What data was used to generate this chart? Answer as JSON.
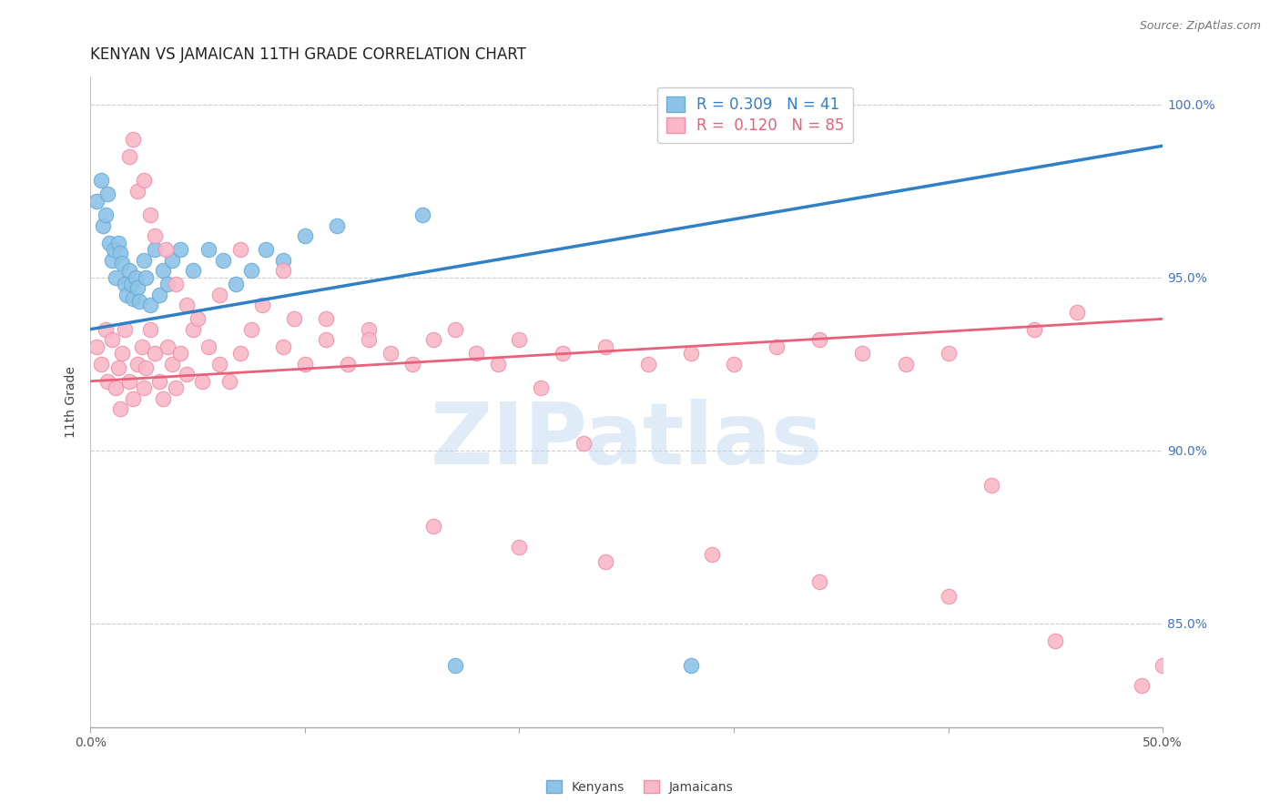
{
  "title": "KENYAN VS JAMAICAN 11TH GRADE CORRELATION CHART",
  "source": "Source: ZipAtlas.com",
  "ylabel": "11th Grade",
  "xmin": 0.0,
  "xmax": 0.5,
  "ymin": 0.82,
  "ymax": 1.008,
  "xticks": [
    0.0,
    0.1,
    0.2,
    0.3,
    0.4,
    0.5
  ],
  "xticklabels": [
    "0.0%",
    "",
    "",
    "",
    "",
    "50.0%"
  ],
  "yticks": [
    0.85,
    0.9,
    0.95,
    1.0
  ],
  "yticklabels": [
    "85.0%",
    "90.0%",
    "95.0%",
    "100.0%"
  ],
  "legend_line1": "R = 0.309   N = 41",
  "legend_line2": "R =  0.120   N = 85",
  "kenyan_color": "#8dc3e8",
  "jamaican_color": "#f9b8c8",
  "kenyan_edge": "#6aaad4",
  "jamaican_edge": "#f090a8",
  "blue_line_color": "#3080c8",
  "pink_line_color": "#e8607a",
  "grid_color": "#cccccc",
  "tick_color": "#4472c4",
  "kenyan_x": [
    0.003,
    0.005,
    0.006,
    0.007,
    0.008,
    0.009,
    0.01,
    0.011,
    0.012,
    0.013,
    0.014,
    0.015,
    0.016,
    0.017,
    0.018,
    0.019,
    0.02,
    0.021,
    0.022,
    0.023,
    0.025,
    0.026,
    0.028,
    0.03,
    0.032,
    0.034,
    0.036,
    0.038,
    0.042,
    0.048,
    0.055,
    0.062,
    0.068,
    0.075,
    0.082,
    0.09,
    0.1,
    0.115,
    0.155,
    0.17,
    0.28
  ],
  "kenyan_y": [
    0.972,
    0.978,
    0.965,
    0.968,
    0.974,
    0.96,
    0.955,
    0.958,
    0.95,
    0.96,
    0.957,
    0.954,
    0.948,
    0.945,
    0.952,
    0.948,
    0.944,
    0.95,
    0.947,
    0.943,
    0.955,
    0.95,
    0.942,
    0.958,
    0.945,
    0.952,
    0.948,
    0.955,
    0.958,
    0.952,
    0.958,
    0.955,
    0.948,
    0.952,
    0.958,
    0.955,
    0.962,
    0.965,
    0.968,
    0.838,
    0.838
  ],
  "jamaican_x": [
    0.003,
    0.005,
    0.007,
    0.008,
    0.01,
    0.012,
    0.013,
    0.014,
    0.015,
    0.016,
    0.018,
    0.02,
    0.022,
    0.024,
    0.025,
    0.026,
    0.028,
    0.03,
    0.032,
    0.034,
    0.036,
    0.038,
    0.04,
    0.042,
    0.045,
    0.048,
    0.052,
    0.055,
    0.06,
    0.065,
    0.07,
    0.075,
    0.08,
    0.09,
    0.095,
    0.1,
    0.11,
    0.12,
    0.13,
    0.14,
    0.15,
    0.16,
    0.17,
    0.18,
    0.19,
    0.2,
    0.21,
    0.22,
    0.23,
    0.24,
    0.26,
    0.28,
    0.3,
    0.32,
    0.34,
    0.36,
    0.38,
    0.4,
    0.42,
    0.44,
    0.46,
    0.018,
    0.02,
    0.022,
    0.025,
    0.028,
    0.03,
    0.035,
    0.04,
    0.045,
    0.05,
    0.06,
    0.07,
    0.09,
    0.11,
    0.13,
    0.16,
    0.2,
    0.24,
    0.29,
    0.34,
    0.4,
    0.45,
    0.49,
    0.5
  ],
  "jamaican_y": [
    0.93,
    0.925,
    0.935,
    0.92,
    0.932,
    0.918,
    0.924,
    0.912,
    0.928,
    0.935,
    0.92,
    0.915,
    0.925,
    0.93,
    0.918,
    0.924,
    0.935,
    0.928,
    0.92,
    0.915,
    0.93,
    0.925,
    0.918,
    0.928,
    0.922,
    0.935,
    0.92,
    0.93,
    0.925,
    0.92,
    0.928,
    0.935,
    0.942,
    0.93,
    0.938,
    0.925,
    0.932,
    0.925,
    0.935,
    0.928,
    0.925,
    0.932,
    0.935,
    0.928,
    0.925,
    0.932,
    0.918,
    0.928,
    0.902,
    0.93,
    0.925,
    0.928,
    0.925,
    0.93,
    0.932,
    0.928,
    0.925,
    0.928,
    0.89,
    0.935,
    0.94,
    0.985,
    0.99,
    0.975,
    0.978,
    0.968,
    0.962,
    0.958,
    0.948,
    0.942,
    0.938,
    0.945,
    0.958,
    0.952,
    0.938,
    0.932,
    0.878,
    0.872,
    0.868,
    0.87,
    0.862,
    0.858,
    0.845,
    0.832,
    0.838
  ],
  "blue_line_x0": 0.0,
  "blue_line_x1": 0.5,
  "blue_line_y0": 0.935,
  "blue_line_y1": 0.988,
  "pink_line_x0": 0.0,
  "pink_line_x1": 0.5,
  "pink_line_y0": 0.92,
  "pink_line_y1": 0.938,
  "watermark_text": "ZIPatlas",
  "watermark_color": "#c0d8f0",
  "watermark_alpha": 0.5,
  "title_fontsize": 12,
  "axis_label_fontsize": 10,
  "tick_fontsize": 10,
  "legend_fontsize": 12,
  "source_fontsize": 9
}
